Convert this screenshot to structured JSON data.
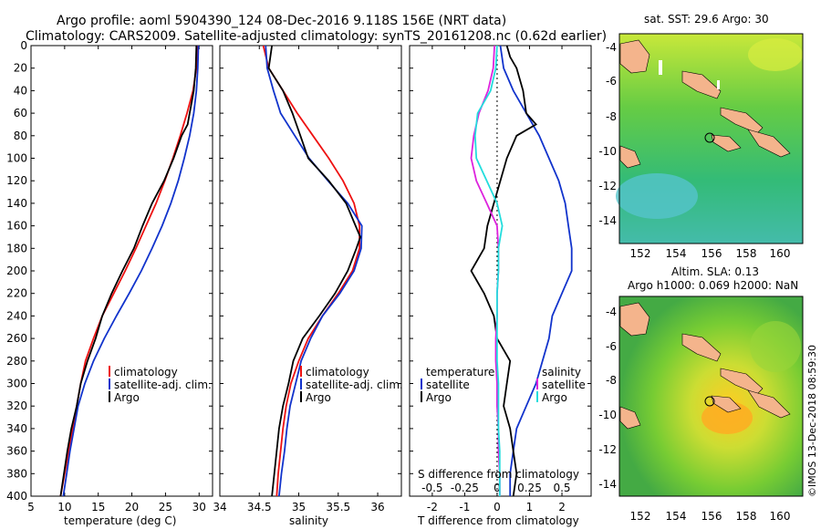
{
  "title": {
    "line1": "Argo profile: aoml 5904390_124 08-Dec-2016 9.118S 156E (NRT data)",
    "line2": "Climatology: CARS2009. Satellite-adjusted climatology: synTS_20161208.nc (0.62d earlier)"
  },
  "colors": {
    "climatology": "#ee1111",
    "satellite": "#1133cc",
    "argo": "#000000",
    "s_sat": "#dd22dd",
    "s_argo": "#22dddd",
    "land": "#f4b48c"
  },
  "chart_data": [
    {
      "type": "line",
      "id": "temperature",
      "xlabel": "temperature (deg C)",
      "ylabel": "",
      "xlim": [
        5,
        32
      ],
      "ylim": [
        400,
        0
      ],
      "xticks": [
        5,
        10,
        15,
        20,
        25,
        30
      ],
      "yticks": [
        0,
        20,
        40,
        60,
        80,
        100,
        120,
        140,
        160,
        180,
        200,
        220,
        240,
        260,
        280,
        300,
        320,
        340,
        360,
        380,
        400
      ],
      "legend": [
        "climatology",
        "satellite-adj. clim.",
        "Argo"
      ],
      "series": [
        {
          "name": "climatology",
          "depth": [
            0,
            20,
            40,
            60,
            80,
            100,
            120,
            140,
            160,
            180,
            200,
            220,
            240,
            260,
            280,
            300,
            320,
            340,
            360,
            380,
            400
          ],
          "values": [
            29.8,
            29.6,
            29.1,
            28.2,
            27.2,
            26.1,
            24.9,
            23.6,
            22.1,
            20.6,
            19.0,
            17.3,
            15.6,
            14.3,
            13.1,
            12.4,
            11.8,
            11.2,
            10.6,
            10.0,
            9.4
          ]
        },
        {
          "name": "satellite-adj. clim.",
          "depth": [
            0,
            20,
            40,
            60,
            80,
            100,
            120,
            140,
            160,
            180,
            200,
            220,
            240,
            260,
            280,
            300,
            320,
            340,
            360,
            380,
            400
          ],
          "values": [
            29.9,
            29.8,
            29.6,
            29.2,
            28.6,
            27.8,
            26.9,
            25.8,
            24.5,
            23.0,
            21.4,
            19.6,
            17.7,
            15.9,
            14.3,
            13.0,
            12.0,
            11.4,
            10.8,
            10.3,
            9.8
          ]
        },
        {
          "name": "Argo",
          "depth": [
            0,
            20,
            40,
            50,
            60,
            70,
            80,
            100,
            120,
            140,
            160,
            180,
            200,
            210,
            220,
            240,
            260,
            280,
            300,
            320,
            340,
            360,
            380,
            400
          ],
          "values": [
            29.6,
            29.5,
            29.2,
            28.9,
            28.6,
            28.3,
            27.4,
            26.2,
            24.8,
            23.0,
            21.6,
            20.3,
            18.6,
            17.8,
            17.0,
            15.6,
            14.6,
            13.4,
            12.4,
            11.8,
            11.0,
            10.4,
            9.9,
            9.4
          ]
        }
      ]
    },
    {
      "type": "line",
      "id": "salinity",
      "xlabel": "salinity",
      "ylabel": "",
      "xlim": [
        34,
        36.3
      ],
      "ylim": [
        400,
        0
      ],
      "xticks": [
        34,
        34.5,
        35,
        35.5,
        36
      ],
      "legend": [
        "climatology",
        "satellite-adj. clim.",
        "Argo"
      ],
      "series": [
        {
          "name": "climatology",
          "depth": [
            0,
            20,
            40,
            60,
            80,
            100,
            120,
            140,
            160,
            180,
            200,
            220,
            240,
            260,
            280,
            300,
            320,
            340,
            360,
            380,
            400
          ],
          "values": [
            34.55,
            34.62,
            34.8,
            34.98,
            35.18,
            35.38,
            35.56,
            35.7,
            35.77,
            35.77,
            35.68,
            35.5,
            35.3,
            35.12,
            35.0,
            34.9,
            34.84,
            34.8,
            34.77,
            34.74,
            34.72
          ]
        },
        {
          "name": "satellite-adj. clim.",
          "depth": [
            0,
            20,
            40,
            60,
            80,
            100,
            120,
            140,
            160,
            180,
            200,
            220,
            240,
            260,
            280,
            300,
            320,
            340,
            360,
            380,
            400
          ],
          "values": [
            34.58,
            34.6,
            34.68,
            34.77,
            34.95,
            35.13,
            35.37,
            35.62,
            35.8,
            35.79,
            35.7,
            35.52,
            35.3,
            35.15,
            35.03,
            34.96,
            34.89,
            34.85,
            34.82,
            34.78,
            34.75
          ]
        },
        {
          "name": "Argo",
          "depth": [
            0,
            20,
            40,
            60,
            80,
            100,
            120,
            140,
            160,
            170,
            180,
            200,
            220,
            240,
            260,
            280,
            300,
            320,
            340,
            360,
            380,
            400
          ],
          "values": [
            34.66,
            34.62,
            34.8,
            34.92,
            35.02,
            35.12,
            35.38,
            35.6,
            35.72,
            35.78,
            35.73,
            35.62,
            35.46,
            35.26,
            35.05,
            34.93,
            34.87,
            34.8,
            34.75,
            34.72,
            34.69,
            34.66
          ]
        }
      ]
    },
    {
      "type": "line",
      "id": "difference",
      "xlabel": "T difference from climatology",
      "xlabel_top": "S difference from climatology",
      "xlim": [
        -2.7,
        2.9
      ],
      "ylim": [
        400,
        0
      ],
      "xticks": [
        -2,
        -1,
        0,
        1,
        2
      ],
      "xticks_s": [
        "-0.5",
        "-0.25",
        "0",
        "0.25",
        "0.5"
      ],
      "legend_left_title": "temperature",
      "legend_right_title": "salinity",
      "legend": [
        "satellite",
        "Argo"
      ],
      "series": [
        {
          "name": "T satellite",
          "depth": [
            0,
            20,
            40,
            60,
            80,
            100,
            120,
            140,
            160,
            180,
            200,
            220,
            240,
            260,
            280,
            300,
            320,
            340,
            360,
            380,
            400
          ],
          "values": [
            0.1,
            0.2,
            0.5,
            0.9,
            1.3,
            1.6,
            1.9,
            2.1,
            2.2,
            2.3,
            2.3,
            2.0,
            1.7,
            1.6,
            1.4,
            1.2,
            0.9,
            0.6,
            0.5,
            0.4,
            0.4
          ]
        },
        {
          "name": "T Argo",
          "depth": [
            0,
            10,
            20,
            40,
            60,
            70,
            80,
            100,
            120,
            140,
            160,
            180,
            200,
            220,
            240,
            260,
            280,
            300,
            320,
            340,
            360,
            380,
            400
          ],
          "values": [
            0.3,
            0.4,
            0.6,
            0.8,
            0.9,
            1.2,
            0.6,
            0.3,
            0.1,
            -0.1,
            -0.3,
            -0.4,
            -0.8,
            -0.4,
            -0.1,
            0.0,
            0.4,
            0.3,
            0.2,
            0.4,
            0.5,
            0.6,
            0.5
          ]
        },
        {
          "name": "S satellite",
          "depth": [
            0,
            20,
            40,
            60,
            80,
            100,
            120,
            140,
            160,
            180,
            200,
            220,
            240,
            260,
            280,
            300,
            320,
            340,
            360,
            380,
            400
          ],
          "values": [
            -0.02,
            -0.03,
            -0.07,
            -0.14,
            -0.18,
            -0.2,
            -0.16,
            -0.08,
            0.0,
            0.01,
            0.01,
            0.0,
            0.0,
            -0.01,
            -0.01,
            0.0,
            0.0,
            0.01,
            0.01,
            0.02,
            0.02
          ]
        },
        {
          "name": "S Argo",
          "depth": [
            0,
            20,
            40,
            60,
            80,
            100,
            120,
            140,
            160,
            180,
            200,
            220,
            240,
            260,
            280,
            300,
            320,
            340,
            360,
            380,
            400
          ],
          "values": [
            0.0,
            -0.01,
            -0.05,
            -0.15,
            -0.17,
            -0.16,
            -0.08,
            0.0,
            0.04,
            0.01,
            0.01,
            0.0,
            0.0,
            0.0,
            0.0,
            0.01,
            0.01,
            0.01,
            0.02,
            0.02,
            0.02
          ]
        }
      ]
    }
  ],
  "maps": {
    "top": {
      "title": "sat. SST: 29.6 Argo: 30",
      "yticks": [
        "-4",
        "-6",
        "-8",
        "-10",
        "-12",
        "-14"
      ],
      "xticks": [
        "152",
        "154",
        "156",
        "158",
        "160"
      ]
    },
    "bottom": {
      "title1": "Altim. SLA: 0.13",
      "title2": "Argo h1000: 0.069 h2000: NaN",
      "yticks": [
        "-4",
        "-6",
        "-8",
        "-10",
        "-12",
        "-14"
      ],
      "xticks": [
        "152",
        "154",
        "156",
        "158",
        "160"
      ]
    }
  },
  "depth_ticks": [
    "0",
    "20",
    "40",
    "60",
    "80",
    "100",
    "120",
    "140",
    "160",
    "180",
    "200",
    "220",
    "240",
    "260",
    "280",
    "300",
    "320",
    "340",
    "360",
    "380",
    "400"
  ],
  "stamp": "©IMOS 13-Dec-2018 08:59:30"
}
